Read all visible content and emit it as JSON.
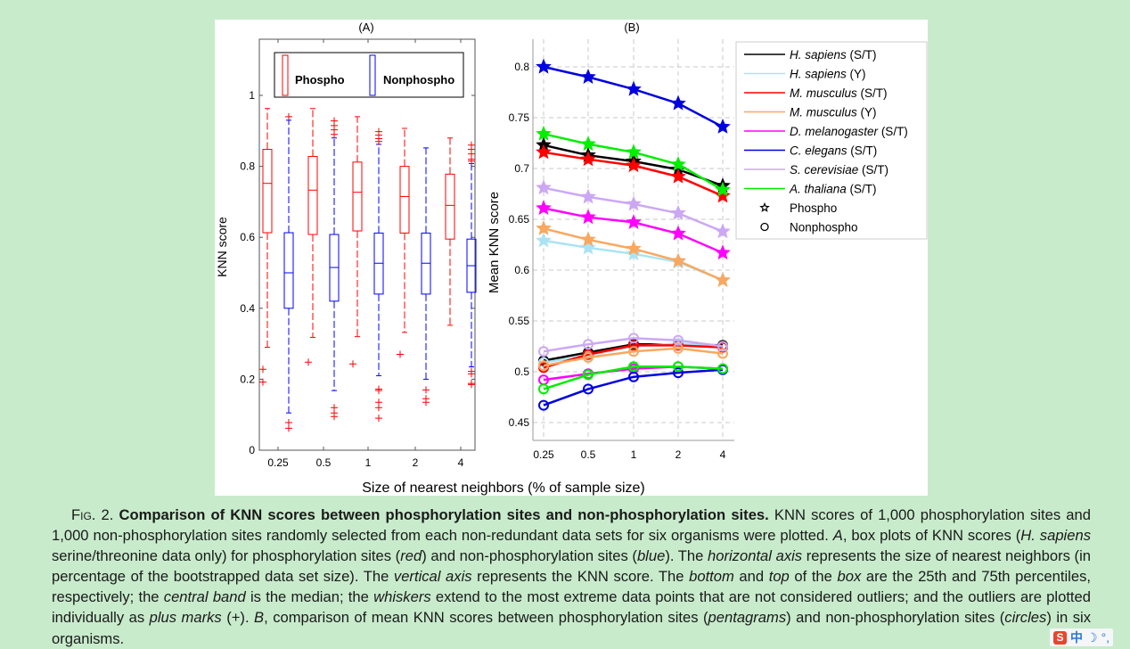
{
  "chart_data": [
    {
      "type": "box",
      "panel_label": "(A)",
      "ylabel": "KNN score",
      "xlabel": "Size of nearest neighbors (% of sample size)",
      "categories": [
        "0.25",
        "0.5",
        "1",
        "2",
        "4"
      ],
      "ylim": [
        0,
        1.12
      ],
      "yticks": [
        "0",
        "0.2",
        "0.4",
        "0.6",
        "0.8",
        "1"
      ],
      "ytick_values": [
        0,
        0.2,
        0.4,
        0.6,
        0.8,
        1
      ],
      "legend": {
        "placement": "top",
        "entries": [
          {
            "name": "Phospho",
            "color": "#ff0000"
          },
          {
            "name": "Nonphospho",
            "color": "#0000ff"
          }
        ]
      },
      "series": [
        {
          "name": "Phospho",
          "color": "#ff0000",
          "boxes": [
            {
              "whisker_low": 0.29,
              "q1": 0.613,
              "median": 0.752,
              "q3": 0.848,
              "whisker_high": 0.963,
              "outliers": [
                0.228,
                0.192
              ]
            },
            {
              "whisker_low": 0.318,
              "q1": 0.608,
              "median": 0.733,
              "q3": 0.828,
              "whisker_high": 0.963,
              "outliers": [
                0.248
              ]
            },
            {
              "whisker_low": 0.32,
              "q1": 0.618,
              "median": 0.727,
              "q3": 0.812,
              "whisker_high": 0.94,
              "outliers": [
                0.243
              ]
            },
            {
              "whisker_low": 0.332,
              "q1": 0.612,
              "median": 0.715,
              "q3": 0.8,
              "whisker_high": 0.907,
              "outliers": [
                0.27
              ]
            },
            {
              "whisker_low": 0.352,
              "q1": 0.595,
              "median": 0.69,
              "q3": 0.778,
              "whisker_high": 0.88,
              "outliers": []
            }
          ]
        },
        {
          "name": "Nonphospho",
          "color": "#0000ff",
          "boxes": [
            {
              "whisker_low": 0.105,
              "q1": 0.4,
              "median": 0.5,
              "q3": 0.613,
              "whisker_high": 0.93,
              "outliers": [
                0.94,
                0.078,
                0.062
              ]
            },
            {
              "whisker_low": 0.168,
              "q1": 0.42,
              "median": 0.515,
              "q3": 0.608,
              "whisker_high": 0.88,
              "outliers": [
                0.928,
                0.915,
                0.903,
                0.89,
                0.12,
                0.105,
                0.095
              ]
            },
            {
              "whisker_low": 0.21,
              "q1": 0.44,
              "median": 0.527,
              "q3": 0.612,
              "whisker_high": 0.862,
              "outliers": [
                0.898,
                0.888,
                0.878,
                0.87,
                0.172,
                0.168,
                0.135,
                0.12,
                0.09
              ]
            },
            {
              "whisker_low": 0.2,
              "q1": 0.44,
              "median": 0.527,
              "q3": 0.612,
              "whisker_high": 0.852,
              "outliers": [
                0.17,
                0.145,
                0.135
              ]
            },
            {
              "whisker_low": 0.235,
              "q1": 0.445,
              "median": 0.52,
              "q3": 0.595,
              "whisker_high": 0.808,
              "outliers": [
                0.86,
                0.848,
                0.835,
                0.82,
                0.815,
                0.222,
                0.215,
                0.188,
                0.185
              ]
            }
          ]
        }
      ]
    },
    {
      "type": "line",
      "panel_label": "(B)",
      "ylabel": "Mean KNN score",
      "xlabel": "Size of nearest neighbors (% of sample size)",
      "x": [
        "0.25",
        "0.5",
        "1",
        "2",
        "4"
      ],
      "ylim": [
        0.425,
        0.822
      ],
      "yticks": [
        "0.45",
        "0.5",
        "0.55",
        "0.6",
        "0.65",
        "0.7",
        "0.75",
        "0.8"
      ],
      "ytick_values": [
        0.45,
        0.5,
        0.55,
        0.6,
        0.65,
        0.7,
        0.75,
        0.8
      ],
      "grid": true,
      "legend_placement": "right",
      "marker_legend": [
        {
          "name": "Phospho",
          "marker": "star"
        },
        {
          "name": "Nonphospho",
          "marker": "circle"
        }
      ],
      "series": [
        {
          "name": "H. sapiens",
          "suffix": "(S/T)",
          "color": "#000000",
          "phospho": [
            0.723,
            0.713,
            0.707,
            0.699,
            0.683
          ],
          "nonphospho": [
            0.511,
            0.519,
            0.527,
            0.527,
            0.526
          ]
        },
        {
          "name": "H. sapiens",
          "suffix": "(Y)",
          "color": "#aae4f4",
          "phospho": [
            0.629,
            0.622,
            0.616,
            0.608,
            0.59
          ],
          "nonphospho": [
            0.509,
            0.516,
            0.525,
            0.528,
            0.524
          ]
        },
        {
          "name": "M. musculus",
          "suffix": "(S/T)",
          "color": "#ff0000",
          "phospho": [
            0.716,
            0.709,
            0.703,
            0.692,
            0.673
          ],
          "nonphospho": [
            0.504,
            0.517,
            0.526,
            0.526,
            0.524
          ]
        },
        {
          "name": "M. musculus",
          "suffix": "(Y)",
          "color": "#f8a860",
          "phospho": [
            0.641,
            0.63,
            0.621,
            0.609,
            0.59
          ],
          "nonphospho": [
            0.506,
            0.514,
            0.52,
            0.523,
            0.518
          ]
        },
        {
          "name": "D. melanogaster",
          "suffix": "(S/T)",
          "color": "#ff00ff",
          "phospho": [
            0.661,
            0.652,
            0.647,
            0.636,
            0.617
          ],
          "nonphospho": [
            0.492,
            0.498,
            0.503,
            0.505,
            0.503
          ]
        },
        {
          "name": "C. elegans",
          "suffix": "(S/T)",
          "color": "#0000e0",
          "phospho": [
            0.8,
            0.79,
            0.778,
            0.764,
            0.741
          ],
          "nonphospho": [
            0.467,
            0.483,
            0.495,
            0.499,
            0.502
          ]
        },
        {
          "name": "S. cerevisiae",
          "suffix": "(S/T)",
          "color": "#cca8f4",
          "phospho": [
            0.681,
            0.672,
            0.665,
            0.656,
            0.638
          ],
          "nonphospho": [
            0.52,
            0.527,
            0.533,
            0.531,
            0.525
          ]
        },
        {
          "name": "A. thaliana",
          "suffix": "(S/T)",
          "color": "#00ee00",
          "phospho": [
            0.734,
            0.724,
            0.716,
            0.704,
            0.679
          ],
          "nonphospho": [
            0.483,
            0.497,
            0.505,
            0.505,
            0.503
          ]
        }
      ]
    }
  ],
  "shared_xlabel": "Size of nearest neighbors (% of sample size)",
  "caption": {
    "fig_label": "Fig. 2.",
    "title": "Comparison of KNN scores between phosphorylation sites and non-phosphorylation sites.",
    "s1": " KNN scores of 1,000 phosphorylation sites and 1,000 non-phosphorylation sites randomly selected from each non-redundant data sets for six organisms were plotted. ",
    "A": "A",
    "s2": ", box plots of KNN scores (",
    "hsap": "H. sapiens",
    "s3": " serine/threonine data only) for phosphorylation sites (",
    "red": "red",
    "s4": ") and non-phosphorylation sites (",
    "blue": "blue",
    "s5": "). The ",
    "haxis": "horizontal axis",
    "s6": " represents the size of nearest neighbors (in percentage of the bootstrapped data set size). The ",
    "vaxis": "vertical axis",
    "s7": " represents the KNN score. The ",
    "bottom": "bottom",
    "s8": " and ",
    "top": "top",
    "s9": " of the ",
    "box": "box",
    "s10": " are the 25th and 75th percentiles, respectively; the ",
    "central": "central band",
    "s11": " is the median; the ",
    "whiskers": "whiskers",
    "s12": " extend to the most extreme data points that are not considered outliers; and the outliers are plotted individually as ",
    "plus": "plus marks",
    "s13": " (+). ",
    "B": "B",
    "s14": ", comparison of mean KNN scores between phosphorylation sites (",
    "pent": "pentagrams",
    "s15": ") and non-phosphorylation sites (",
    "circ": "circles",
    "s16": ") in six organisms."
  },
  "ime_toolbar": {
    "logo": "S",
    "lang": "中",
    "moon": "☽",
    "punct": "°,"
  }
}
